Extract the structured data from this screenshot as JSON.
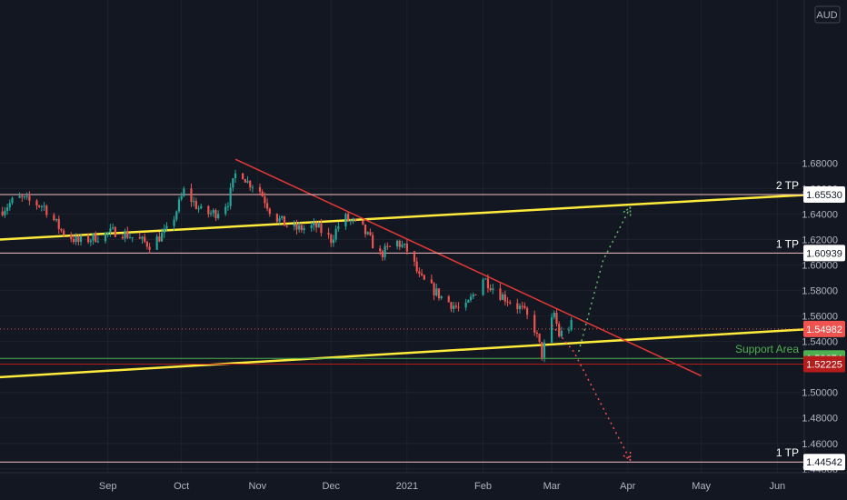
{
  "chart_data": {
    "type": "candlestick",
    "currency": "AUD",
    "ylim": [
      1.437,
      1.808
    ],
    "xlim": [
      "2020-07-19",
      "2021-06-12"
    ],
    "x_ticks": [
      {
        "label": "Sep",
        "date": "2020-09-01"
      },
      {
        "label": "Oct",
        "date": "2020-10-01"
      },
      {
        "label": "Nov",
        "date": "2020-11-01"
      },
      {
        "label": "Dec",
        "date": "2020-12-01"
      },
      {
        "label": "2021",
        "date": "2021-01-01"
      },
      {
        "label": "Feb",
        "date": "2021-02-01"
      },
      {
        "label": "Mar",
        "date": "2021-03-01"
      },
      {
        "label": "Apr",
        "date": "2021-04-01"
      },
      {
        "label": "May",
        "date": "2021-05-01"
      },
      {
        "label": "Jun",
        "date": "2021-06-01"
      }
    ],
    "y_ticks": [
      {
        "label": "1.68000",
        "value": 1.68
      },
      {
        "label": "1.66000",
        "value": 1.66
      },
      {
        "label": "1.64000",
        "value": 1.64
      },
      {
        "label": "1.62000",
        "value": 1.62
      },
      {
        "label": "1.60000",
        "value": 1.6
      },
      {
        "label": "1.58000",
        "value": 1.58
      },
      {
        "label": "1.56000",
        "value": 1.56
      },
      {
        "label": "1.54000",
        "value": 1.54
      },
      {
        "label": "1.50000",
        "value": 1.5
      },
      {
        "label": "1.48000",
        "value": 1.48
      },
      {
        "label": "1.46000",
        "value": 1.46
      },
      {
        "label": "1.44000",
        "value": 1.44
      }
    ],
    "levels": [
      {
        "value": 1.6553,
        "label": "1.65530",
        "annotation": "2 TP",
        "color": "#f4c2c2",
        "tag_bg": "#ffffff",
        "tag_fg": "#131722",
        "style": "solid"
      },
      {
        "value": 1.60939,
        "label": "1.60939",
        "annotation": "1 TP",
        "color": "#f4c2c2",
        "tag_bg": "#ffffff",
        "tag_fg": "#131722",
        "style": "solid"
      },
      {
        "value": 1.54982,
        "label": "1.54982",
        "annotation": "",
        "color": "#ef5350",
        "tag_bg": "#ef5350",
        "tag_fg": "#ffffff",
        "style": "dotted"
      },
      {
        "value": 1.52674,
        "label": "1.52674",
        "annotation": "Support Area",
        "color": "#4caf50",
        "tag_bg": "#4caf50",
        "tag_fg": "#ffffff",
        "style": "solid"
      },
      {
        "value": 1.52225,
        "label": "1.52225",
        "annotation": "",
        "color": "#b71c1c",
        "tag_bg": "#b71c1c",
        "tag_fg": "#ffffff",
        "style": "solid"
      },
      {
        "value": 1.44542,
        "label": "1.44542",
        "annotation": "1 TP",
        "color": "#f4c2c2",
        "tag_bg": "#ffffff",
        "tag_fg": "#131722",
        "style": "solid"
      }
    ],
    "trendlines": [
      {
        "name": "upper-channel",
        "color": "#ffeb3b",
        "points": [
          {
            "x": "2020-07-19",
            "y": 1.62
          },
          {
            "x": "2021-06-12",
            "y": 1.655
          }
        ]
      },
      {
        "name": "lower-channel",
        "color": "#ffeb3b",
        "points": [
          {
            "x": "2020-07-19",
            "y": 1.512
          },
          {
            "x": "2021-06-12",
            "y": 1.5495
          }
        ]
      },
      {
        "name": "downtrend",
        "color": "#e53935",
        "points": [
          {
            "x": "2020-10-23",
            "y": 1.683
          },
          {
            "x": "2021-05-01",
            "y": 1.513
          }
        ]
      }
    ],
    "projections": [
      {
        "name": "bull-path",
        "color": "#66bb6a",
        "points": [
          {
            "x": "2021-03-12",
            "y": 1.532
          },
          {
            "x": "2021-03-22",
            "y": 1.604
          },
          {
            "x": "2021-04-02",
            "y": 1.645
          }
        ]
      },
      {
        "name": "bear-path",
        "color": "#ef5350",
        "points": [
          {
            "x": "2021-03-01",
            "y": 1.553
          },
          {
            "x": "2021-03-10",
            "y": 1.532
          },
          {
            "x": "2021-04-02",
            "y": 1.447
          }
        ]
      }
    ],
    "series": [
      {
        "name": "price",
        "anchors": [
          {
            "x": "2020-07-19",
            "y": 1.642
          },
          {
            "x": "2020-07-26",
            "y": 1.653
          },
          {
            "x": "2020-08-06",
            "y": 1.646
          },
          {
            "x": "2020-08-13",
            "y": 1.627
          },
          {
            "x": "2020-08-20",
            "y": 1.618
          },
          {
            "x": "2020-09-05",
            "y": 1.627
          },
          {
            "x": "2020-09-18",
            "y": 1.616
          },
          {
            "x": "2020-09-26",
            "y": 1.628
          },
          {
            "x": "2020-10-02",
            "y": 1.658
          },
          {
            "x": "2020-10-10",
            "y": 1.64
          },
          {
            "x": "2020-10-15",
            "y": 1.641
          },
          {
            "x": "2020-10-20",
            "y": 1.65
          },
          {
            "x": "2020-10-24",
            "y": 1.678
          },
          {
            "x": "2020-10-28",
            "y": 1.665
          },
          {
            "x": "2020-11-01",
            "y": 1.662
          },
          {
            "x": "2020-11-07",
            "y": 1.64
          },
          {
            "x": "2020-11-15",
            "y": 1.628
          },
          {
            "x": "2020-11-25",
            "y": 1.63
          },
          {
            "x": "2020-12-01",
            "y": 1.62
          },
          {
            "x": "2020-12-06",
            "y": 1.638
          },
          {
            "x": "2020-12-14",
            "y": 1.628
          },
          {
            "x": "2020-12-21",
            "y": 1.608
          },
          {
            "x": "2020-12-28",
            "y": 1.618
          },
          {
            "x": "2021-01-02",
            "y": 1.61
          },
          {
            "x": "2021-01-06",
            "y": 1.59
          },
          {
            "x": "2021-01-15",
            "y": 1.575
          },
          {
            "x": "2021-01-24",
            "y": 1.563
          },
          {
            "x": "2021-02-01",
            "y": 1.59
          },
          {
            "x": "2021-02-08",
            "y": 1.577
          },
          {
            "x": "2021-02-17",
            "y": 1.565
          },
          {
            "x": "2021-02-22",
            "y": 1.55
          },
          {
            "x": "2021-02-25",
            "y": 1.53
          },
          {
            "x": "2021-03-02",
            "y": 1.562
          },
          {
            "x": "2021-03-04",
            "y": 1.545
          },
          {
            "x": "2021-03-09",
            "y": 1.553
          }
        ]
      }
    ]
  }
}
